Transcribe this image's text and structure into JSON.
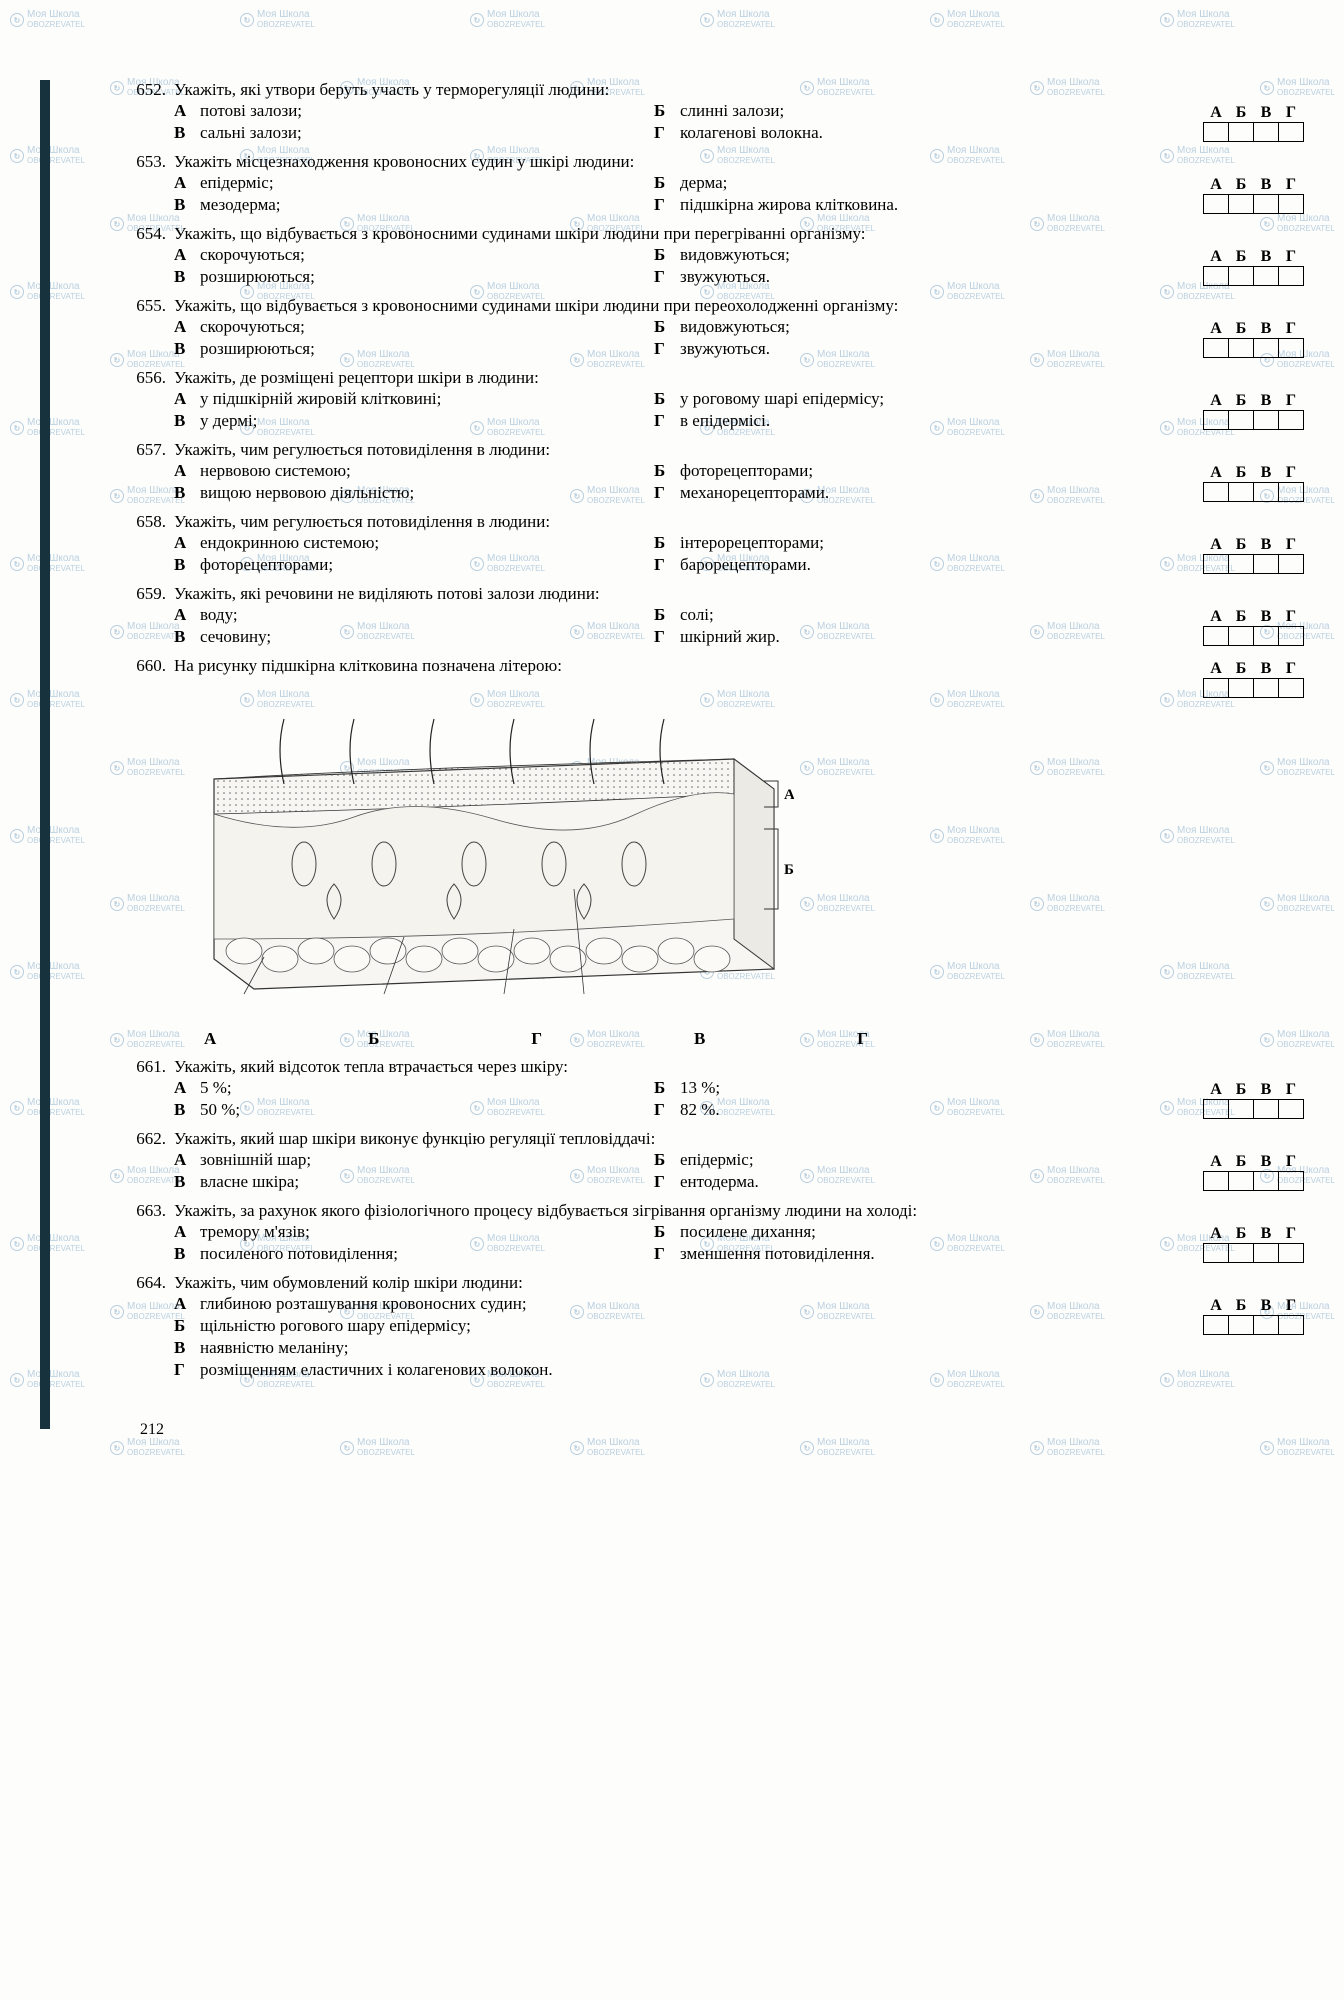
{
  "watermark": {
    "line1": "Моя Школа",
    "line2": "OBOZREVATEL",
    "color": "#3a7aa8"
  },
  "sidebar_color": "#17323d",
  "page_number": "212",
  "answer_letters": [
    "А",
    "Б",
    "В",
    "Г"
  ],
  "fig_bottom_labels": [
    "А",
    "Б",
    "Г",
    "В",
    "Г"
  ],
  "fig_side_labels": [
    "А",
    "Б"
  ],
  "questions": [
    {
      "num": "652.",
      "text": "Укажіть, які утвори беруть участь у терморегуляції людини:",
      "layout": "2col",
      "opts": [
        {
          "l": "А",
          "t": "потові залози;"
        },
        {
          "l": "Б",
          "t": "слинні залози;"
        },
        {
          "l": "В",
          "t": "сальні залози;"
        },
        {
          "l": "Г",
          "t": "колагенові волокна."
        }
      ]
    },
    {
      "num": "653.",
      "text": "Укажіть місцезнаходження кровоносних судин у шкірі людини:",
      "layout": "2col",
      "opts": [
        {
          "l": "А",
          "t": "епідерміс;"
        },
        {
          "l": "Б",
          "t": "дерма;"
        },
        {
          "l": "В",
          "t": "мезодерма;"
        },
        {
          "l": "Г",
          "t": "підшкірна жирова клітковина."
        }
      ]
    },
    {
      "num": "654.",
      "text": "Укажіть, що відбувається з кровоносними судинами шкіри людини при перегріванні організму:",
      "layout": "2col",
      "opts": [
        {
          "l": "А",
          "t": "скорочуються;"
        },
        {
          "l": "Б",
          "t": "видовжуються;"
        },
        {
          "l": "В",
          "t": "розширюються;"
        },
        {
          "l": "Г",
          "t": "звужуються."
        }
      ]
    },
    {
      "num": "655.",
      "text": "Укажіть, що відбувається з кровоносними судинами шкіри людини при переохолодженні організму:",
      "layout": "2col",
      "opts": [
        {
          "l": "А",
          "t": "скорочуються;"
        },
        {
          "l": "Б",
          "t": "видовжуються;"
        },
        {
          "l": "В",
          "t": "розширюються;"
        },
        {
          "l": "Г",
          "t": "звужуються."
        }
      ]
    },
    {
      "num": "656.",
      "text": "Укажіть, де розміщені рецептори шкіри в людини:",
      "layout": "2col",
      "opts": [
        {
          "l": "А",
          "t": "у підшкірній жировій клітковині;"
        },
        {
          "l": "Б",
          "t": "у роговому шарі епідермісу;"
        },
        {
          "l": "В",
          "t": "у дермі;"
        },
        {
          "l": "Г",
          "t": "в епідермісі."
        }
      ]
    },
    {
      "num": "657.",
      "text": "Укажіть, чим регулюється потовиділення в людини:",
      "layout": "2col",
      "opts": [
        {
          "l": "А",
          "t": "нервовою системою;"
        },
        {
          "l": "Б",
          "t": "фоторецепторами;"
        },
        {
          "l": "В",
          "t": "вищою нервовою діяльністю;"
        },
        {
          "l": "Г",
          "t": "механорецепторами."
        }
      ]
    },
    {
      "num": "658.",
      "text": "Укажіть, чим регулюється потовиділення в людини:",
      "layout": "2col",
      "opts": [
        {
          "l": "А",
          "t": "ендокринною системою;"
        },
        {
          "l": "Б",
          "t": "інтерорецепторами;"
        },
        {
          "l": "В",
          "t": "фоторецепторами;"
        },
        {
          "l": "Г",
          "t": "барорецепторами."
        }
      ]
    },
    {
      "num": "659.",
      "text": "Укажіть, які речовини не виділяють потові залози людини:",
      "layout": "2col",
      "opts": [
        {
          "l": "А",
          "t": "воду;"
        },
        {
          "l": "Б",
          "t": "солі;"
        },
        {
          "l": "В",
          "t": "сечовину;"
        },
        {
          "l": "Г",
          "t": "шкірний жир."
        }
      ]
    },
    {
      "num": "660.",
      "text": "На рисунку підшкірна клітковина позначена літерою:",
      "layout": "figure",
      "opts": []
    },
    {
      "num": "661.",
      "text": "Укажіть, який відсоток тепла втрачається через шкіру:",
      "layout": "2col",
      "opts": [
        {
          "l": "А",
          "t": "5 %;"
        },
        {
          "l": "Б",
          "t": "13 %;"
        },
        {
          "l": "В",
          "t": "50 %;"
        },
        {
          "l": "Г",
          "t": "82 %."
        }
      ]
    },
    {
      "num": "662.",
      "text": "Укажіть, який шар шкіри виконує функцію регуляції тепловіддачі:",
      "layout": "2col",
      "opts": [
        {
          "l": "А",
          "t": "зовнішній шар;"
        },
        {
          "l": "Б",
          "t": "епідерміс;"
        },
        {
          "l": "В",
          "t": "власне шкіра;"
        },
        {
          "l": "Г",
          "t": "ентодерма."
        }
      ]
    },
    {
      "num": "663.",
      "text": "Укажіть, за рахунок якого фізіологічного процесу відбувається зігрівання організму людини на холоді:",
      "layout": "2col",
      "opts": [
        {
          "l": "А",
          "t": "тремору м'язів;"
        },
        {
          "l": "Б",
          "t": "посилене дихання;"
        },
        {
          "l": "В",
          "t": "посиленого потовиділення;"
        },
        {
          "l": "Г",
          "t": "зменшення потовиділення."
        }
      ]
    },
    {
      "num": "664.",
      "text": "Укажіть, чим обумовлений колір шкіри людини:",
      "layout": "1col",
      "opts": [
        {
          "l": "А",
          "t": "глибиною розташування кровоносних судин;"
        },
        {
          "l": "Б",
          "t": "щільністю рогового шару епідермісу;"
        },
        {
          "l": "В",
          "t": "наявністю меланіну;"
        },
        {
          "l": "Г",
          "t": "розміщенням еластичних і колагенових волокон."
        }
      ]
    }
  ]
}
